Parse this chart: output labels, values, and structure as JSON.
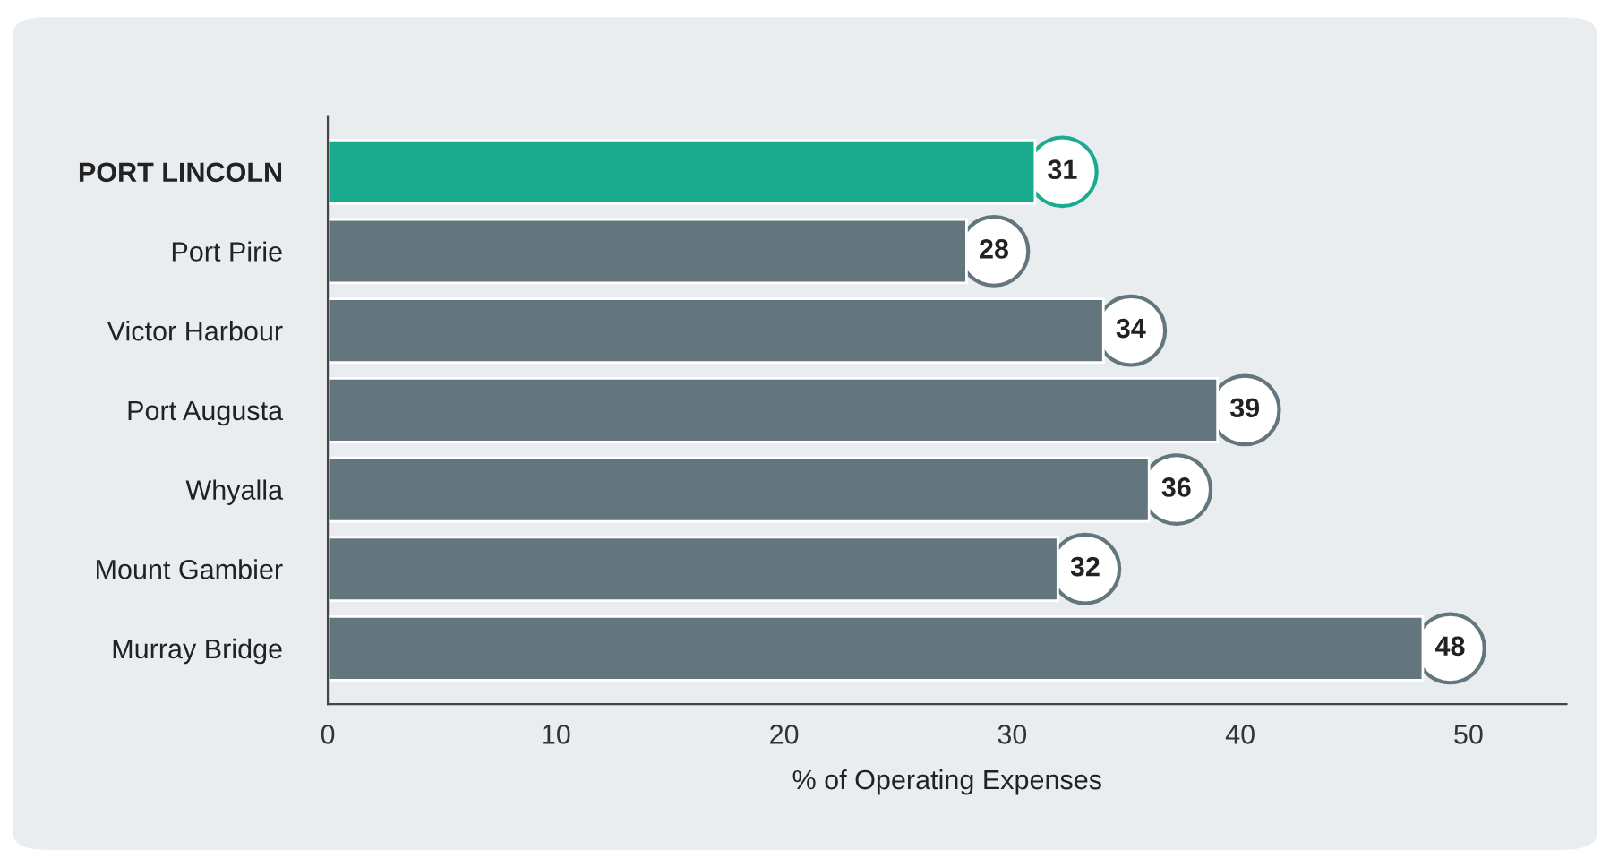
{
  "chart_data": {
    "type": "bar",
    "orientation": "horizontal",
    "xlabel": "% of Operating Expenses",
    "categories": [
      "PORT LINCOLN",
      "Port Pirie",
      "Victor Harbour",
      "Port Augusta",
      "Whyalla",
      "Mount Gambier",
      "Murray Bridge"
    ],
    "values": [
      31,
      28,
      34,
      39,
      36,
      32,
      48
    ],
    "colors": [
      "#1aab8e",
      "#64767d",
      "#64767d",
      "#64767d",
      "#64767d",
      "#64767d",
      "#64767d"
    ],
    "xlim": [
      0,
      54.3
    ],
    "xticks": [
      0,
      10,
      20,
      30,
      40,
      50
    ],
    "data_labels": true,
    "grid": false,
    "legend": false
  }
}
